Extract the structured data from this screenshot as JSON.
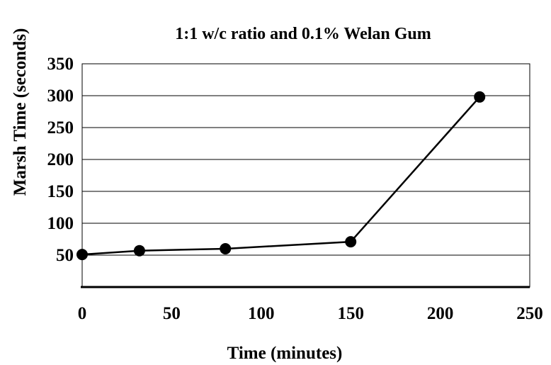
{
  "chart_data": {
    "type": "line",
    "title": "1:1 w/c ratio and 0.1% Welan Gum",
    "xlabel": "Time (minutes)",
    "ylabel": "Marsh Time (seconds)",
    "xlim": [
      0,
      250
    ],
    "ylim": [
      0,
      350
    ],
    "xticks": [
      0,
      50,
      100,
      150,
      200,
      250
    ],
    "yticks": [
      50,
      100,
      150,
      200,
      250,
      300,
      350
    ],
    "grid": "horizontal",
    "legend": "none",
    "series": [
      {
        "x": [
          0,
          32,
          80,
          150,
          222
        ],
        "y": [
          51,
          57,
          60,
          71,
          298
        ]
      }
    ]
  },
  "colors": {
    "line": "#000000",
    "marker": "#000000",
    "grid": "#000000",
    "background": "#ffffff"
  }
}
